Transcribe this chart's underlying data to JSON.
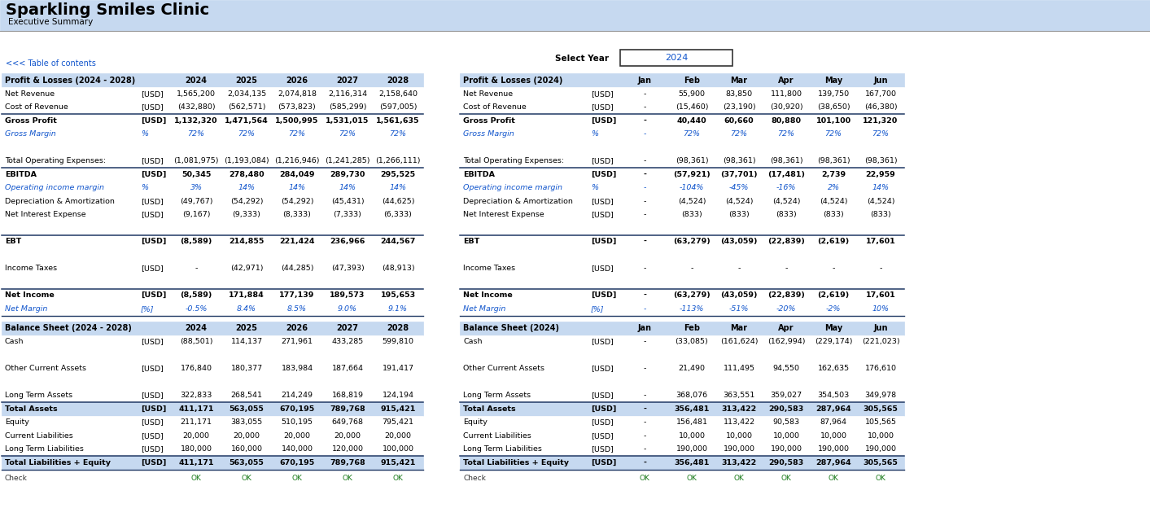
{
  "title": "Sparkling Smiles Clinic",
  "subtitle": "Executive Summary",
  "header_bg": "#b8d4ea",
  "link_color": "#1155CC",
  "link_text": "<<< Table of contents",
  "select_year_label": "Select Year",
  "select_year_value": "2024",
  "pl_annual_header": "Profit & Losses (2024 - 2028)",
  "pl_annual_years": [
    "2024",
    "2025",
    "2026",
    "2027",
    "2028"
  ],
  "pl_annual_rows": [
    {
      "label": "Net Revenue",
      "unit": "[USD]",
      "bold": false,
      "blue": false,
      "italic": false,
      "values": [
        "1,565,200",
        "2,034,135",
        "2,074,818",
        "2,116,314",
        "2,158,640"
      ],
      "sep_above": false,
      "bg_override": null
    },
    {
      "label": "Cost of Revenue",
      "unit": "[USD]",
      "bold": false,
      "blue": false,
      "italic": false,
      "values": [
        "(432,880)",
        "(562,571)",
        "(573,823)",
        "(585,299)",
        "(597,005)"
      ],
      "sep_above": false,
      "bg_override": null
    },
    {
      "label": "Gross Profit",
      "unit": "[USD]",
      "bold": true,
      "blue": false,
      "italic": false,
      "values": [
        "1,132,320",
        "1,471,564",
        "1,500,995",
        "1,531,015",
        "1,561,635"
      ],
      "sep_above": true,
      "bg_override": null
    },
    {
      "label": "Gross Margin",
      "unit": "%",
      "bold": false,
      "blue": true,
      "italic": true,
      "values": [
        "72%",
        "72%",
        "72%",
        "72%",
        "72%"
      ],
      "sep_above": false,
      "bg_override": null
    },
    {
      "label": "",
      "unit": "",
      "bold": false,
      "blue": false,
      "italic": false,
      "values": [
        "",
        "",
        "",
        "",
        ""
      ],
      "sep_above": false,
      "bg_override": null
    },
    {
      "label": "Total Operating Expenses:",
      "unit": "[USD]",
      "bold": false,
      "blue": false,
      "italic": false,
      "values": [
        "(1,081,975)",
        "(1,193,084)",
        "(1,216,946)",
        "(1,241,285)",
        "(1,266,111)"
      ],
      "sep_above": false,
      "bg_override": null
    },
    {
      "label": "EBITDA",
      "unit": "[USD]",
      "bold": true,
      "blue": false,
      "italic": false,
      "values": [
        "50,345",
        "278,480",
        "284,049",
        "289,730",
        "295,525"
      ],
      "sep_above": true,
      "bg_override": null
    },
    {
      "label": "Operating income margin",
      "unit": "%",
      "bold": false,
      "blue": true,
      "italic": true,
      "values": [
        "3%",
        "14%",
        "14%",
        "14%",
        "14%"
      ],
      "sep_above": false,
      "bg_override": null
    },
    {
      "label": "Depreciation & Amortization",
      "unit": "[USD]",
      "bold": false,
      "blue": false,
      "italic": false,
      "values": [
        "(49,767)",
        "(54,292)",
        "(54,292)",
        "(45,431)",
        "(44,625)"
      ],
      "sep_above": false,
      "bg_override": null
    },
    {
      "label": "Net Interest Expense",
      "unit": "[USD]",
      "bold": false,
      "blue": false,
      "italic": false,
      "values": [
        "(9,167)",
        "(9,333)",
        "(8,333)",
        "(7,333)",
        "(6,333)"
      ],
      "sep_above": false,
      "bg_override": null
    },
    {
      "label": "",
      "unit": "",
      "bold": false,
      "blue": false,
      "italic": false,
      "values": [
        "",
        "",
        "",
        "",
        ""
      ],
      "sep_above": false,
      "bg_override": null
    },
    {
      "label": "EBT",
      "unit": "[USD]",
      "bold": true,
      "blue": false,
      "italic": false,
      "values": [
        "(8,589)",
        "214,855",
        "221,424",
        "236,966",
        "244,567"
      ],
      "sep_above": true,
      "bg_override": null
    },
    {
      "label": "",
      "unit": "",
      "bold": false,
      "blue": false,
      "italic": false,
      "values": [
        "",
        "",
        "",
        "",
        ""
      ],
      "sep_above": false,
      "bg_override": null
    },
    {
      "label": "Income Taxes",
      "unit": "[USD]",
      "bold": false,
      "blue": false,
      "italic": false,
      "values": [
        "-",
        "(42,971)",
        "(44,285)",
        "(47,393)",
        "(48,913)"
      ],
      "sep_above": false,
      "bg_override": null
    },
    {
      "label": "",
      "unit": "",
      "bold": false,
      "blue": false,
      "italic": false,
      "values": [
        "",
        "",
        "",
        "",
        ""
      ],
      "sep_above": false,
      "bg_override": null
    },
    {
      "label": "Net Income",
      "unit": "[USD]",
      "bold": true,
      "blue": false,
      "italic": false,
      "values": [
        "(8,589)",
        "171,884",
        "177,139",
        "189,573",
        "195,653"
      ],
      "sep_above": true,
      "bg_override": null
    },
    {
      "label": "Net Margin",
      "unit": "[%]",
      "bold": false,
      "blue": true,
      "italic": true,
      "values": [
        "-0.5%",
        "8.4%",
        "8.5%",
        "9.0%",
        "9.1%"
      ],
      "sep_above": false,
      "bg_override": null
    }
  ],
  "bs_annual_header": "Balance Sheet (2024 - 2028)",
  "bs_annual_years": [
    "2024",
    "2025",
    "2026",
    "2027",
    "2028"
  ],
  "bs_annual_rows": [
    {
      "label": "Cash",
      "unit": "[USD]",
      "bold": false,
      "blue": false,
      "header_row": false,
      "values": [
        "(88,501)",
        "114,137",
        "271,961",
        "433,285",
        "599,810"
      ]
    },
    {
      "label": "",
      "unit": "",
      "bold": false,
      "blue": false,
      "header_row": false,
      "values": [
        "",
        "",
        "",
        "",
        ""
      ]
    },
    {
      "label": "Other Current Assets",
      "unit": "[USD]",
      "bold": false,
      "blue": false,
      "header_row": false,
      "values": [
        "176,840",
        "180,377",
        "183,984",
        "187,664",
        "191,417"
      ]
    },
    {
      "label": "",
      "unit": "",
      "bold": false,
      "blue": false,
      "header_row": false,
      "values": [
        "",
        "",
        "",
        "",
        ""
      ]
    },
    {
      "label": "Long Term Assets",
      "unit": "[USD]",
      "bold": false,
      "blue": false,
      "header_row": false,
      "values": [
        "322,833",
        "268,541",
        "214,249",
        "168,819",
        "124,194"
      ]
    },
    {
      "label": "Total Assets",
      "unit": "[USD]",
      "bold": true,
      "blue": false,
      "header_row": true,
      "values": [
        "411,171",
        "563,055",
        "670,195",
        "789,768",
        "915,421"
      ]
    },
    {
      "label": "Equity",
      "unit": "[USD]",
      "bold": false,
      "blue": false,
      "header_row": false,
      "values": [
        "211,171",
        "383,055",
        "510,195",
        "649,768",
        "795,421"
      ]
    },
    {
      "label": "Current Liabilities",
      "unit": "[USD]",
      "bold": false,
      "blue": false,
      "header_row": false,
      "values": [
        "20,000",
        "20,000",
        "20,000",
        "20,000",
        "20,000"
      ]
    },
    {
      "label": "Long Term Liabilities",
      "unit": "[USD]",
      "bold": false,
      "blue": false,
      "header_row": false,
      "values": [
        "180,000",
        "160,000",
        "140,000",
        "120,000",
        "100,000"
      ]
    },
    {
      "label": "Total Liabilities + Equity",
      "unit": "[USD]",
      "bold": true,
      "blue": false,
      "header_row": true,
      "values": [
        "411,171",
        "563,055",
        "670,195",
        "789,768",
        "915,421"
      ]
    }
  ],
  "pl_monthly_header": "Profit & Losses (2024)",
  "pl_monthly_months": [
    "Jan",
    "Feb",
    "Mar",
    "Apr",
    "May",
    "Jun"
  ],
  "pl_monthly_rows": [
    {
      "label": "Net Revenue",
      "unit": "[USD]",
      "bold": false,
      "blue": false,
      "italic": false,
      "values": [
        "-",
        "55,900",
        "83,850",
        "111,800",
        "139,750",
        "167,700"
      ],
      "sep_above": false
    },
    {
      "label": "Cost of Revenue",
      "unit": "[USD]",
      "bold": false,
      "blue": false,
      "italic": false,
      "values": [
        "-",
        "(15,460)",
        "(23,190)",
        "(30,920)",
        "(38,650)",
        "(46,380)"
      ],
      "sep_above": false
    },
    {
      "label": "Gross Profit",
      "unit": "[USD]",
      "bold": true,
      "blue": false,
      "italic": false,
      "values": [
        "-",
        "40,440",
        "60,660",
        "80,880",
        "101,100",
        "121,320"
      ],
      "sep_above": true
    },
    {
      "label": "Gross Margin",
      "unit": "%",
      "bold": false,
      "blue": true,
      "italic": true,
      "values": [
        "-",
        "72%",
        "72%",
        "72%",
        "72%",
        "72%"
      ],
      "sep_above": false
    },
    {
      "label": "",
      "unit": "",
      "bold": false,
      "blue": false,
      "italic": false,
      "values": [
        "",
        "",
        "",
        "",
        "",
        ""
      ],
      "sep_above": false
    },
    {
      "label": "Total Operating Expenses:",
      "unit": "[USD]",
      "bold": false,
      "blue": false,
      "italic": false,
      "values": [
        "-",
        "(98,361)",
        "(98,361)",
        "(98,361)",
        "(98,361)",
        "(98,361)"
      ],
      "sep_above": false
    },
    {
      "label": "EBITDA",
      "unit": "[USD]",
      "bold": true,
      "blue": false,
      "italic": false,
      "values": [
        "-",
        "(57,921)",
        "(37,701)",
        "(17,481)",
        "2,739",
        "22,959"
      ],
      "sep_above": true
    },
    {
      "label": "Operating income margin",
      "unit": "%",
      "bold": false,
      "blue": true,
      "italic": true,
      "values": [
        "-",
        "-104%",
        "-45%",
        "-16%",
        "2%",
        "14%"
      ],
      "sep_above": false
    },
    {
      "label": "Depreciation & Amortization",
      "unit": "[USD]",
      "bold": false,
      "blue": false,
      "italic": false,
      "values": [
        "-",
        "(4,524)",
        "(4,524)",
        "(4,524)",
        "(4,524)",
        "(4,524)"
      ],
      "sep_above": false
    },
    {
      "label": "Net Interest Expense",
      "unit": "[USD]",
      "bold": false,
      "blue": false,
      "italic": false,
      "values": [
        "-",
        "(833)",
        "(833)",
        "(833)",
        "(833)",
        "(833)"
      ],
      "sep_above": false
    },
    {
      "label": "",
      "unit": "",
      "bold": false,
      "blue": false,
      "italic": false,
      "values": [
        "",
        "",
        "",
        "",
        "",
        ""
      ],
      "sep_above": false
    },
    {
      "label": "EBT",
      "unit": "[USD]",
      "bold": true,
      "blue": false,
      "italic": false,
      "values": [
        "-",
        "(63,279)",
        "(43,059)",
        "(22,839)",
        "(2,619)",
        "17,601"
      ],
      "sep_above": true
    },
    {
      "label": "",
      "unit": "",
      "bold": false,
      "blue": false,
      "italic": false,
      "values": [
        "",
        "",
        "",
        "",
        "",
        ""
      ],
      "sep_above": false
    },
    {
      "label": "Income Taxes",
      "unit": "[USD]",
      "bold": false,
      "blue": false,
      "italic": false,
      "values": [
        "-",
        "-",
        "-",
        "-",
        "-",
        "-"
      ],
      "sep_above": false
    },
    {
      "label": "",
      "unit": "",
      "bold": false,
      "blue": false,
      "italic": false,
      "values": [
        "",
        "",
        "",
        "",
        "",
        ""
      ],
      "sep_above": false
    },
    {
      "label": "Net Income",
      "unit": "[USD]",
      "bold": true,
      "blue": false,
      "italic": false,
      "values": [
        "-",
        "(63,279)",
        "(43,059)",
        "(22,839)",
        "(2,619)",
        "17,601"
      ],
      "sep_above": true
    },
    {
      "label": "Net Margin",
      "unit": "[%]",
      "bold": false,
      "blue": true,
      "italic": true,
      "values": [
        "-",
        "-113%",
        "-51%",
        "-20%",
        "-2%",
        "10%"
      ],
      "sep_above": false
    }
  ],
  "bs_monthly_header": "Balance Sheet (2024)",
  "bs_monthly_months": [
    "Jan",
    "Feb",
    "Mar",
    "Apr",
    "May",
    "Jun"
  ],
  "bs_monthly_rows": [
    {
      "label": "Cash",
      "unit": "[USD]",
      "bold": false,
      "blue": false,
      "header_row": false,
      "values": [
        "-",
        "(33,085)",
        "(161,624)",
        "(162,994)",
        "(229,174)",
        "(221,023)"
      ]
    },
    {
      "label": "",
      "unit": "",
      "bold": false,
      "blue": false,
      "header_row": false,
      "values": [
        "",
        "",
        "",
        "",
        "",
        ""
      ]
    },
    {
      "label": "Other Current Assets",
      "unit": "[USD]",
      "bold": false,
      "blue": false,
      "header_row": false,
      "values": [
        "-",
        "21,490",
        "111,495",
        "94,550",
        "162,635",
        "176,610"
      ]
    },
    {
      "label": "",
      "unit": "",
      "bold": false,
      "blue": false,
      "header_row": false,
      "values": [
        "",
        "",
        "",
        "",
        "",
        ""
      ]
    },
    {
      "label": "Long Term Assets",
      "unit": "[USD]",
      "bold": false,
      "blue": false,
      "header_row": false,
      "values": [
        "-",
        "368,076",
        "363,551",
        "359,027",
        "354,503",
        "349,978"
      ]
    },
    {
      "label": "Total Assets",
      "unit": "[USD]",
      "bold": true,
      "blue": false,
      "header_row": true,
      "values": [
        "-",
        "356,481",
        "313,422",
        "290,583",
        "287,964",
        "305,565"
      ]
    },
    {
      "label": "Equity",
      "unit": "[USD]",
      "bold": false,
      "blue": false,
      "header_row": false,
      "values": [
        "-",
        "156,481",
        "113,422",
        "90,583",
        "87,964",
        "105,565"
      ]
    },
    {
      "label": "Current Liabilities",
      "unit": "[USD]",
      "bold": false,
      "blue": false,
      "header_row": false,
      "values": [
        "-",
        "10,000",
        "10,000",
        "10,000",
        "10,000",
        "10,000"
      ]
    },
    {
      "label": "Long Term Liabilities",
      "unit": "[USD]",
      "bold": false,
      "blue": false,
      "header_row": false,
      "values": [
        "-",
        "190,000",
        "190,000",
        "190,000",
        "190,000",
        "190,000"
      ]
    },
    {
      "label": "Total Liabilities + Equity",
      "unit": "[USD]",
      "bold": true,
      "blue": false,
      "header_row": true,
      "values": [
        "-",
        "356,481",
        "313,422",
        "290,583",
        "287,964",
        "305,565"
      ]
    }
  ],
  "col_header_blue_bg": "#c6d9f0",
  "total_row_bg": "#c6d9f0",
  "text_blue": "#1155CC",
  "text_dark": "#000000",
  "border_dark": "#1f3864",
  "border_light": "#8db3d6"
}
